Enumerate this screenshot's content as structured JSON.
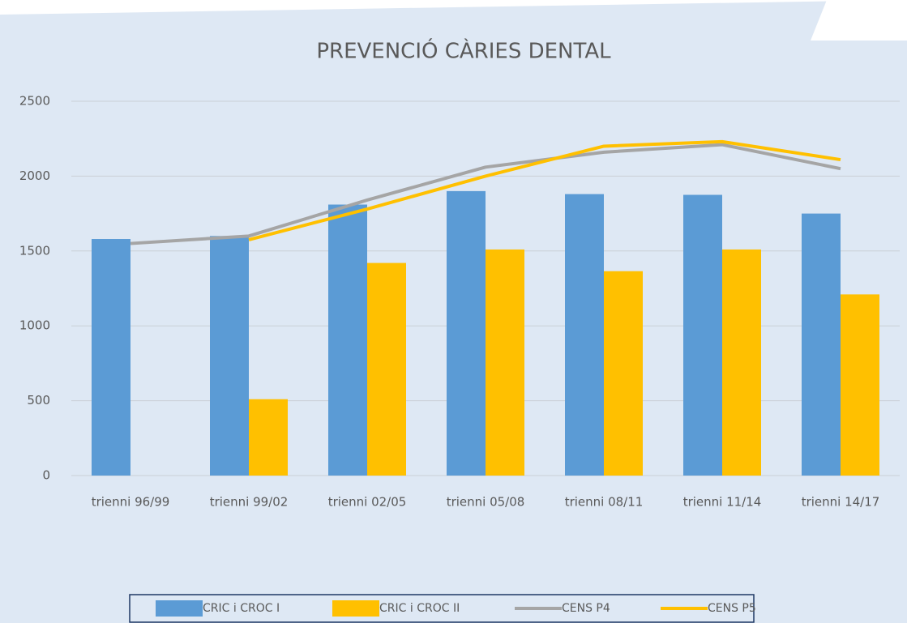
{
  "chart_data": {
    "type": "bar",
    "title": "PREVENCIÓ CÀRIES DENTAL",
    "categories": [
      "trienni 96/99",
      "trienni 99/02",
      "trienni 02/05",
      "trienni 05/08",
      "trienni 08/11",
      "trienni 11/14",
      "trienni 14/17"
    ],
    "series": [
      {
        "name": "CRIC i CROC I",
        "type": "bar",
        "color": "#5b9bd5",
        "values": [
          1580,
          1600,
          1810,
          1900,
          1880,
          1875,
          1750
        ]
      },
      {
        "name": "CRIC i CROC II",
        "type": "bar",
        "color": "#ffc000",
        "values": [
          null,
          510,
          1420,
          1510,
          1365,
          1510,
          1210
        ]
      },
      {
        "name": "CENS P4",
        "type": "line",
        "color": "#a5a5a5",
        "values": [
          1550,
          1600,
          1840,
          2060,
          2160,
          2210,
          2050
        ]
      },
      {
        "name": "CENS P5",
        "type": "line",
        "color": "#ffc000",
        "values": [
          null,
          1575,
          1780,
          2000,
          2200,
          2230,
          2110
        ]
      }
    ],
    "ylim": [
      0,
      2500
    ],
    "yticks": [
      0,
      500,
      1000,
      1500,
      2000,
      2500
    ],
    "grid": true,
    "legend": "bottom"
  }
}
